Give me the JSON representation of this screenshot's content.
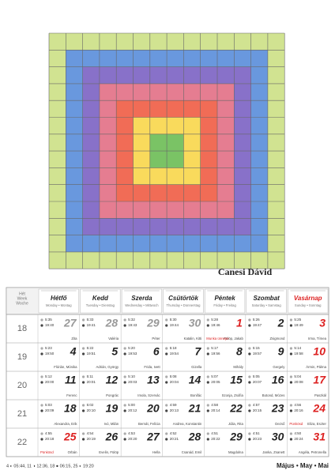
{
  "artwork": {
    "artist": "Canesi Dávid"
  },
  "calendar": {
    "week_header": [
      "Hét",
      "Week",
      "Woche"
    ],
    "days": [
      {
        "name": "Hétfő",
        "sub": "Monday • Montag"
      },
      {
        "name": "Kedd",
        "sub": "Tuesday • Dienstag"
      },
      {
        "name": "Szerda",
        "sub": "Wednesday • Mittwoch"
      },
      {
        "name": "Csütörtök",
        "sub": "Thursday • Donnerstag"
      },
      {
        "name": "Péntek",
        "sub": "Friday • Freitag"
      },
      {
        "name": "Szombat",
        "sub": "Saturday • Samstag"
      },
      {
        "name": "Vasárnap",
        "sub": "Sunday • Sonntag"
      }
    ],
    "weeks": [
      {
        "number": 18,
        "days": [
          {
            "day": 27,
            "rise": "5:35",
            "set": "19:40",
            "names": "Zita",
            "other_month": true
          },
          {
            "day": 28,
            "rise": "5:33",
            "set": "19:41",
            "names": "Valéria",
            "other_month": true
          },
          {
            "day": 29,
            "rise": "5:32",
            "set": "19:43",
            "names": "Péter",
            "other_month": true
          },
          {
            "day": 30,
            "rise": "5:30",
            "set": "19:44",
            "names": "Katalin, Kitti",
            "other_month": true
          },
          {
            "day": 1,
            "rise": "5:28",
            "set": "19:46",
            "names": "Fülöp, Jakab",
            "holiday": "Munka ünnepe",
            "red": true
          },
          {
            "day": 2,
            "rise": "5:26",
            "set": "19:47",
            "names": "Zsigmond"
          },
          {
            "day": 3,
            "rise": "5:25",
            "set": "19:49",
            "names": "Irma, Tímea",
            "red": true
          }
        ]
      },
      {
        "number": 19,
        "days": [
          {
            "day": 4,
            "rise": "5:23",
            "set": "19:50",
            "names": "Flórián, Mónika"
          },
          {
            "day": 5,
            "rise": "5:22",
            "set": "19:51",
            "names": "Adrián, György"
          },
          {
            "day": 6,
            "rise": "5:20",
            "set": "19:53",
            "names": "Frida, Ivett"
          },
          {
            "day": 7,
            "rise": "5:18",
            "set": "19:54",
            "names": "Gizella"
          },
          {
            "day": 8,
            "rise": "5:17",
            "set": "19:56",
            "names": "Mihály"
          },
          {
            "day": 9,
            "rise": "5:15",
            "set": "19:57",
            "names": "Gergely"
          },
          {
            "day": 10,
            "rise": "5:14",
            "set": "19:58",
            "names": "Ármin, Pálma",
            "red": true
          }
        ]
      },
      {
        "number": 20,
        "days": [
          {
            "day": 11,
            "rise": "5:12",
            "set": "20:00",
            "names": "Ferenc"
          },
          {
            "day": 12,
            "rise": "5:11",
            "set": "20:01",
            "names": "Pongrác"
          },
          {
            "day": 13,
            "rise": "5:10",
            "set": "20:03",
            "names": "Imola, Szervác"
          },
          {
            "day": 14,
            "rise": "5:08",
            "set": "20:04",
            "names": "Bonifác"
          },
          {
            "day": 15,
            "rise": "5:07",
            "set": "20:05",
            "names": "Szonja, Zsófia"
          },
          {
            "day": 16,
            "rise": "5:05",
            "set": "20:07",
            "names": "Botond, Mózes"
          },
          {
            "day": 17,
            "rise": "5:04",
            "set": "20:08",
            "names": "Paszkál",
            "red": true
          }
        ]
      },
      {
        "number": 21,
        "days": [
          {
            "day": 18,
            "rise": "5:03",
            "set": "20:09",
            "names": "Alexandra, Erik"
          },
          {
            "day": 19,
            "rise": "5:02",
            "set": "20:10",
            "names": "Ivó, Milán"
          },
          {
            "day": 20,
            "rise": "5:00",
            "set": "20:12",
            "names": "Bernát, Felícia"
          },
          {
            "day": 21,
            "rise": "4:59",
            "set": "20:13",
            "names": "Andrea, Konstantin"
          },
          {
            "day": 22,
            "rise": "4:58",
            "set": "20:14",
            "names": "Júlia, Rita"
          },
          {
            "day": 23,
            "rise": "4:57",
            "set": "20:15",
            "names": "Dezső"
          },
          {
            "day": 24,
            "rise": "4:56",
            "set": "20:16",
            "names": "Eliza, Eszter",
            "holiday": "Pünkösd",
            "red": true
          }
        ]
      },
      {
        "number": 22,
        "days": [
          {
            "day": 25,
            "rise": "4:55",
            "set": "20:18",
            "names": "Orbán",
            "holiday": "Pünkösd",
            "red": true
          },
          {
            "day": 26,
            "rise": "4:54",
            "set": "20:19",
            "names": "Evelin, Fülöp"
          },
          {
            "day": 27,
            "rise": "4:53",
            "set": "20:20",
            "names": "Hella"
          },
          {
            "day": 28,
            "rise": "4:52",
            "set": "20:21",
            "names": "Csanád, Emil"
          },
          {
            "day": 29,
            "rise": "4:51",
            "set": "20:22",
            "names": "Magdolna"
          },
          {
            "day": 30,
            "rise": "4:51",
            "set": "20:23",
            "names": "Janka, Zsanett"
          },
          {
            "day": 31,
            "rise": "4:50",
            "set": "20:24",
            "names": "Angéla, Petronella",
            "red": true
          }
        ]
      }
    ]
  },
  "footer": {
    "moon": "4 ◐ 05:44, 11 ◑ 12:36, 18 ● 06:15, 25 ◐ 19:20",
    "month": "Május • May • Mai"
  }
}
